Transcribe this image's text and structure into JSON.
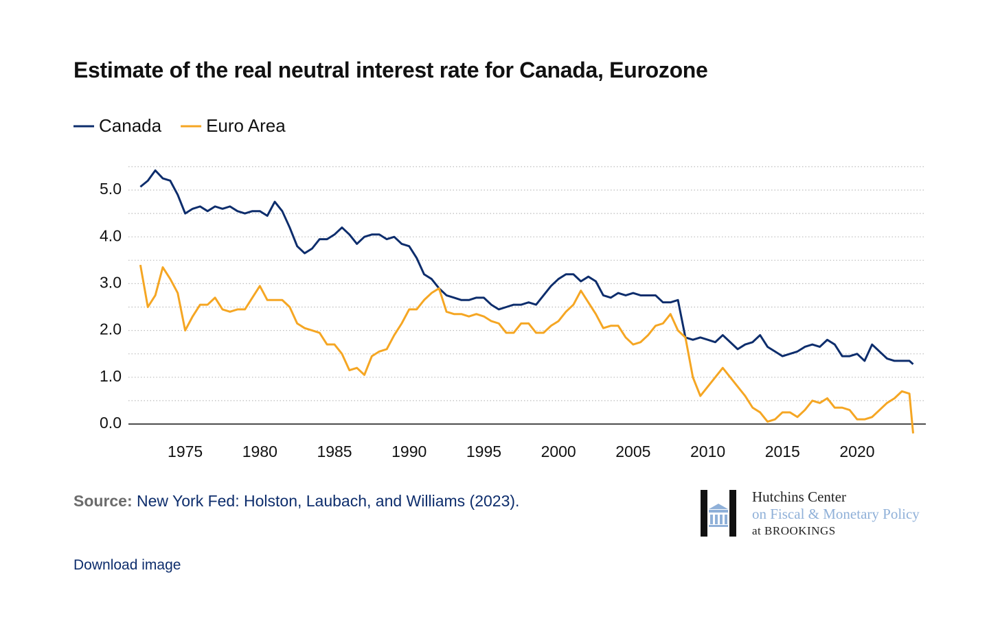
{
  "chart_data": {
    "type": "line",
    "title": "Estimate of the real neutral interest rate for Canada, Eurozone",
    "x": [
      1972,
      1972.5,
      1973,
      1973.5,
      1974,
      1974.5,
      1975,
      1975.5,
      1976,
      1976.5,
      1977,
      1977.5,
      1978,
      1978.5,
      1979,
      1979.5,
      1980,
      1980.5,
      1981,
      1981.5,
      1982,
      1982.5,
      1983,
      1983.5,
      1984,
      1984.5,
      1985,
      1985.5,
      1986,
      1986.5,
      1987,
      1987.5,
      1988,
      1988.5,
      1989,
      1989.5,
      1990,
      1990.5,
      1991,
      1991.5,
      1992,
      1992.5,
      1993,
      1993.5,
      1994,
      1994.5,
      1995,
      1995.5,
      1996,
      1996.5,
      1997,
      1997.5,
      1998,
      1998.5,
      1999,
      1999.5,
      2000,
      2000.5,
      2001,
      2001.5,
      2002,
      2002.5,
      2003,
      2003.5,
      2004,
      2004.5,
      2005,
      2005.5,
      2006,
      2006.5,
      2007,
      2007.5,
      2008,
      2008.5,
      2009,
      2009.5,
      2010,
      2010.5,
      2011,
      2011.5,
      2012,
      2012.5,
      2013,
      2013.5,
      2014,
      2014.5,
      2015,
      2015.5,
      2016,
      2016.5,
      2017,
      2017.5,
      2018,
      2018.5,
      2019,
      2019.5,
      2020,
      2020.5,
      2021,
      2021.5,
      2022,
      2022.5,
      2023,
      2023.5,
      2023.75
    ],
    "series": [
      {
        "name": "Canada",
        "color": "#0d2d6c",
        "values": [
          5.07,
          5.2,
          5.42,
          5.25,
          5.2,
          4.9,
          4.5,
          4.6,
          4.65,
          4.55,
          4.65,
          4.6,
          4.65,
          4.55,
          4.5,
          4.55,
          4.55,
          4.45,
          4.75,
          4.55,
          4.2,
          3.8,
          3.65,
          3.75,
          3.95,
          3.95,
          4.05,
          4.2,
          4.05,
          3.85,
          4.0,
          4.05,
          4.05,
          3.95,
          4.0,
          3.85,
          3.8,
          3.55,
          3.2,
          3.1,
          2.9,
          2.75,
          2.7,
          2.65,
          2.65,
          2.7,
          2.7,
          2.55,
          2.45,
          2.5,
          2.55,
          2.55,
          2.6,
          2.55,
          2.75,
          2.95,
          3.1,
          3.2,
          3.2,
          3.05,
          3.15,
          3.05,
          2.75,
          2.7,
          2.8,
          2.75,
          2.8,
          2.75,
          2.75,
          2.75,
          2.6,
          2.6,
          2.65,
          1.85,
          1.8,
          1.85,
          1.8,
          1.75,
          1.9,
          1.75,
          1.6,
          1.7,
          1.75,
          1.9,
          1.65,
          1.55,
          1.45,
          1.5,
          1.55,
          1.65,
          1.7,
          1.65,
          1.8,
          1.7,
          1.45,
          1.45,
          1.5,
          1.35,
          1.7,
          1.55,
          1.4,
          1.35,
          1.35,
          1.35,
          1.28
        ]
      },
      {
        "name": "Euro Area",
        "color": "#f5a623",
        "values": [
          3.4,
          2.5,
          2.75,
          3.35,
          3.1,
          2.8,
          2.0,
          2.3,
          2.55,
          2.55,
          2.7,
          2.45,
          2.4,
          2.45,
          2.45,
          2.7,
          2.95,
          2.65,
          2.65,
          2.65,
          2.5,
          2.15,
          2.05,
          2.0,
          1.95,
          1.7,
          1.7,
          1.5,
          1.15,
          1.2,
          1.05,
          1.45,
          1.55,
          1.6,
          1.9,
          2.15,
          2.45,
          2.45,
          2.65,
          2.8,
          2.9,
          2.4,
          2.35,
          2.35,
          2.3,
          2.35,
          2.3,
          2.2,
          2.15,
          1.95,
          1.95,
          2.15,
          2.15,
          1.95,
          1.95,
          2.1,
          2.2,
          2.4,
          2.55,
          2.85,
          2.6,
          2.35,
          2.05,
          2.1,
          2.1,
          1.85,
          1.7,
          1.75,
          1.9,
          2.1,
          2.15,
          2.35,
          2.0,
          1.85,
          1.0,
          0.6,
          0.8,
          1.0,
          1.2,
          1.0,
          0.8,
          0.6,
          0.35,
          0.25,
          0.05,
          0.1,
          0.25,
          0.25,
          0.15,
          0.3,
          0.5,
          0.45,
          0.55,
          0.35,
          0.35,
          0.3,
          0.1,
          0.1,
          0.15,
          0.3,
          0.45,
          0.55,
          0.7,
          0.65,
          -0.2
        ]
      }
    ],
    "xlim": [
      1971.2,
      2024.6
    ],
    "xticks": [
      1975,
      1980,
      1985,
      1990,
      1995,
      2000,
      2005,
      2010,
      2015,
      2020
    ],
    "ylim": [
      -0.25,
      5.6
    ],
    "yticks": [
      {
        "value": 0,
        "label": "0.0"
      },
      {
        "value": 1,
        "label": "1.0"
      },
      {
        "value": 2,
        "label": "2.0"
      },
      {
        "value": 3,
        "label": "3.0"
      },
      {
        "value": 4,
        "label": "4.0"
      },
      {
        "value": 5,
        "label": "5.0"
      }
    ],
    "minor_yticks": [
      0.5,
      1.5,
      2.5,
      3.5,
      4.5,
      5.5
    ],
    "grid": true,
    "legend": "top-left"
  },
  "source": {
    "label": "Source:",
    "text": "New York Fed: Holston, Laubach, and Williams (2023)."
  },
  "logo": [
    "Hutchins Center",
    "on Fiscal & Monetary Policy",
    "at BROOKINGS"
  ],
  "download": "Download image"
}
